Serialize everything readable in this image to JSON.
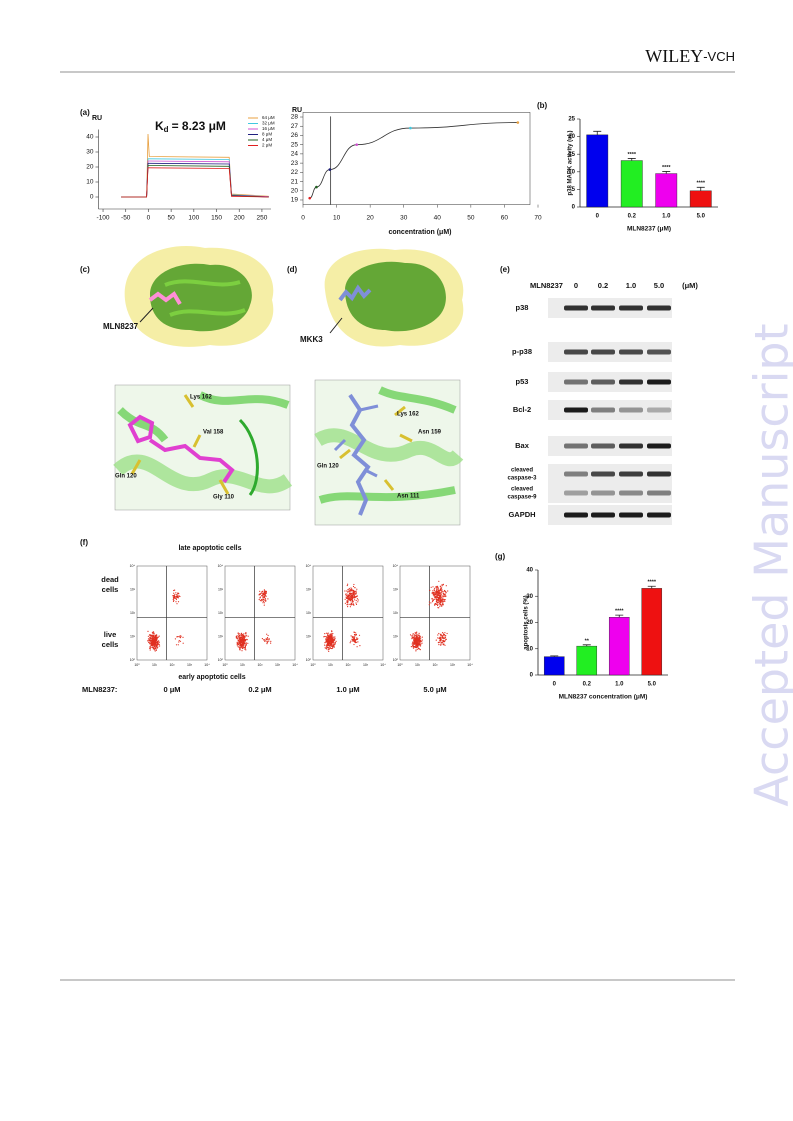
{
  "header": {
    "brand": "WILEY",
    "brand_suffix": "-VCH"
  },
  "watermark": "Accepted Manuscript",
  "figure": {
    "panel_a": {
      "label": "(a)",
      "y_label": "RU",
      "kd_symbol": "K",
      "kd_subscript": "d",
      "kd_text": "= 8.23 μM",
      "xlim": [
        -110,
        270
      ],
      "ylim": [
        -8,
        45
      ],
      "xticks": [
        -100,
        -50,
        0,
        50,
        100,
        150,
        200,
        250
      ],
      "yticks": [
        0,
        10,
        20,
        30,
        40
      ],
      "x": [
        -60,
        -4,
        -1,
        2,
        178,
        183,
        265
      ],
      "series": [
        {
          "name": "64 μM",
          "color": "#e8a040",
          "values": [
            0,
            0,
            42,
            27,
            26.5,
            2,
            0.5
          ]
        },
        {
          "name": "32 μM",
          "color": "#40c8e0",
          "values": [
            0,
            0,
            25.5,
            25.5,
            25,
            1.5,
            0.3
          ]
        },
        {
          "name": "16 μM",
          "color": "#d050d0",
          "values": [
            0,
            0,
            24,
            24,
            23.5,
            1.2,
            0.2
          ]
        },
        {
          "name": "8 μM",
          "color": "#202080",
          "values": [
            0,
            0,
            22.5,
            22.5,
            22,
            1,
            0
          ]
        },
        {
          "name": "4 μM",
          "color": "#206020",
          "values": [
            0,
            0,
            21,
            21,
            20.5,
            0.8,
            0
          ]
        },
        {
          "name": "2 μM",
          "color": "#e02020",
          "values": [
            0,
            0,
            19.5,
            19.5,
            19,
            0.5,
            0
          ]
        }
      ]
    },
    "panel_a2": {
      "y_label": "RU",
      "x_label": "concentration (μM)",
      "xlim": [
        0,
        70
      ],
      "ylim": [
        18.5,
        28.5
      ],
      "xticks": [
        0,
        10,
        20,
        30,
        40,
        50,
        60,
        70
      ],
      "yticks": [
        19,
        20,
        21,
        22,
        23,
        24,
        25,
        26,
        27,
        28
      ],
      "x": [
        2,
        4,
        8,
        16,
        32,
        64
      ],
      "values": [
        19.2,
        20.4,
        22.3,
        25.0,
        26.8,
        27.4
      ],
      "colors": [
        "#e02020",
        "#206020",
        "#202080",
        "#d050d0",
        "#40c8e0",
        "#e8a040"
      ],
      "vline": 8.23
    },
    "panel_b": {
      "label": "(b)",
      "y_label": "p38 MAPK activity (uL)",
      "x_label": "MLN8237 (μM)",
      "categories": [
        "0",
        "0.2",
        "1.0",
        "5.0"
      ],
      "values": [
        20.5,
        13.2,
        9.5,
        4.6
      ],
      "errors": [
        1.0,
        0.6,
        0.6,
        1.0
      ],
      "annotations": [
        null,
        "****",
        "****",
        "****"
      ],
      "colors": [
        "#0000ee",
        "#22ee22",
        "#ee00ee",
        "#ee1111"
      ],
      "ylim": [
        0,
        25
      ],
      "yticks": [
        0,
        5,
        10,
        15,
        20,
        25
      ]
    },
    "panel_c": {
      "label": "(c)",
      "ligand": "MLN8237",
      "residues": [
        "Lys 162",
        "Val 158",
        "Gln 120",
        "Gly 110"
      ]
    },
    "panel_d": {
      "label": "(d)",
      "ligand": "MKK3",
      "residues": [
        "Lys 162",
        "Asn 159",
        "Gln 120",
        "Asn 111"
      ]
    },
    "panel_e": {
      "label": "(e)",
      "treatment": "MLN8237",
      "lanes": [
        "0",
        "0.2",
        "1.0",
        "5.0"
      ],
      "unit": "(μM)",
      "rows": [
        [
          "p38"
        ],
        [
          "p-p38"
        ],
        [
          "p53"
        ],
        [
          "Bcl-2"
        ],
        [
          "Bax"
        ],
        [
          "cleaved",
          "caspase-3"
        ],
        [
          "cleaved",
          "caspase-9"
        ],
        [
          "GAPDH"
        ]
      ]
    },
    "panel_f": {
      "label": "(f)",
      "top_label": "late apoptotic cells",
      "bottom_label": "early apoptotic cells",
      "dead_label": [
        "dead",
        "cells"
      ],
      "live_label": [
        "live",
        "cells"
      ],
      "treatment": "MLN8237:",
      "doses": [
        "0 μM",
        "0.2 μM",
        "1.0 μM",
        "5.0 μM"
      ],
      "tick_labels": [
        "10⁰",
        "10¹",
        "10²",
        "10³",
        "10⁴"
      ]
    },
    "panel_g": {
      "label": "(g)",
      "y_label": "apoptosis cells (%)",
      "x_label": "MLN8237 concentration (μM)",
      "categories": [
        "0",
        "0.2",
        "1.0",
        "5.0"
      ],
      "values": [
        7,
        11,
        22,
        33
      ],
      "errors": [
        0.3,
        0.5,
        0.8,
        0.8
      ],
      "annotations": [
        null,
        "**",
        "****",
        "****"
      ],
      "colors": [
        "#0000ee",
        "#22ee22",
        "#ee00ee",
        "#ee1111"
      ],
      "ylim": [
        0,
        40
      ],
      "yticks": [
        0,
        10,
        20,
        30,
        40
      ]
    }
  }
}
